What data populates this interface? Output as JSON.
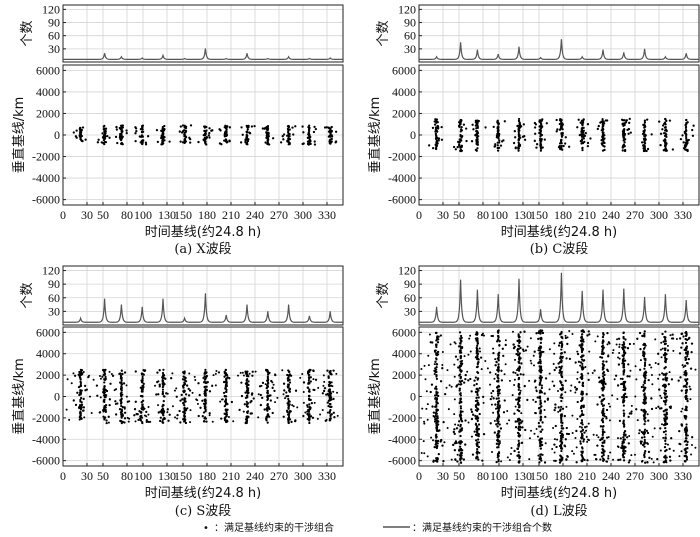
{
  "legend": {
    "dot_symbol": "•",
    "dot_label": "：满足基线约束的干涉组合",
    "line_label": "：满足基线约束的干涉组合个数"
  },
  "chart_data": [
    {
      "type": "scatter",
      "caption": "(a) X波段",
      "xlabel": "时间基线(约24.8 h)",
      "ylabel_top": "个数",
      "ylabel_bottom": "垂直基线/km",
      "xlim": [
        0,
        350
      ],
      "xticks": [
        0,
        30,
        50,
        80,
        100,
        130,
        150,
        180,
        210,
        240,
        270,
        300,
        330
      ],
      "count_ylim": [
        0,
        130
      ],
      "count_yticks": [
        30,
        60,
        90,
        120
      ],
      "count_peaks": [
        {
          "x": 22,
          "y": 6
        },
        {
          "x": 52,
          "y": 20
        },
        {
          "x": 73,
          "y": 12
        },
        {
          "x": 99,
          "y": 9
        },
        {
          "x": 125,
          "y": 15
        },
        {
          "x": 152,
          "y": 8
        },
        {
          "x": 178,
          "y": 31
        },
        {
          "x": 204,
          "y": 8
        },
        {
          "x": 230,
          "y": 20
        },
        {
          "x": 256,
          "y": 8
        },
        {
          "x": 282,
          "y": 12
        },
        {
          "x": 308,
          "y": 8
        },
        {
          "x": 334,
          "y": 9
        }
      ],
      "baseline_ylim": [
        -6500,
        6500
      ],
      "baseline_yticks": [
        6000,
        4000,
        2000,
        0,
        -2000,
        -4000,
        -6000
      ],
      "columns": [
        {
          "x": 22,
          "spread": 700
        },
        {
          "x": 52,
          "spread": 900
        },
        {
          "x": 73,
          "spread": 900
        },
        {
          "x": 99,
          "spread": 900
        },
        {
          "x": 125,
          "spread": 900
        },
        {
          "x": 152,
          "spread": 900
        },
        {
          "x": 178,
          "spread": 900
        },
        {
          "x": 204,
          "spread": 900
        },
        {
          "x": 230,
          "spread": 900
        },
        {
          "x": 256,
          "spread": 900
        },
        {
          "x": 282,
          "spread": 900
        },
        {
          "x": 308,
          "spread": 900
        },
        {
          "x": 334,
          "spread": 800
        }
      ]
    },
    {
      "type": "scatter",
      "caption": "(b) C波段",
      "xlabel": "时间基线(约24.8 h)",
      "ylabel_top": "个数",
      "ylabel_bottom": "垂直基线/km",
      "xlim": [
        0,
        350
      ],
      "xticks": [
        0,
        30,
        50,
        80,
        100,
        130,
        150,
        180,
        210,
        240,
        270,
        300,
        330
      ],
      "count_ylim": [
        0,
        130
      ],
      "count_yticks": [
        30,
        60,
        90,
        120
      ],
      "count_peaks": [
        {
          "x": 22,
          "y": 12
        },
        {
          "x": 52,
          "y": 45
        },
        {
          "x": 73,
          "y": 28
        },
        {
          "x": 99,
          "y": 18
        },
        {
          "x": 125,
          "y": 35
        },
        {
          "x": 152,
          "y": 10
        },
        {
          "x": 178,
          "y": 52
        },
        {
          "x": 204,
          "y": 12
        },
        {
          "x": 230,
          "y": 28
        },
        {
          "x": 256,
          "y": 22
        },
        {
          "x": 282,
          "y": 30
        },
        {
          "x": 308,
          "y": 12
        },
        {
          "x": 334,
          "y": 20
        }
      ],
      "baseline_ylim": [
        -6500,
        6500
      ],
      "baseline_yticks": [
        6000,
        4000,
        2000,
        0,
        -2000,
        -4000,
        -6000
      ],
      "columns": [
        {
          "x": 22,
          "spread": 1500
        },
        {
          "x": 52,
          "spread": 1500
        },
        {
          "x": 73,
          "spread": 1500
        },
        {
          "x": 99,
          "spread": 1500
        },
        {
          "x": 125,
          "spread": 1500
        },
        {
          "x": 152,
          "spread": 1500
        },
        {
          "x": 178,
          "spread": 1500
        },
        {
          "x": 204,
          "spread": 1500
        },
        {
          "x": 230,
          "spread": 1500
        },
        {
          "x": 256,
          "spread": 1500
        },
        {
          "x": 282,
          "spread": 1500
        },
        {
          "x": 308,
          "spread": 1500
        },
        {
          "x": 334,
          "spread": 1500
        }
      ]
    },
    {
      "type": "scatter",
      "caption": "(c) S波段",
      "xlabel": "时间基线(约24.8 h)",
      "ylabel_top": "个数",
      "ylabel_bottom": "垂直基线/km",
      "xlim": [
        0,
        350
      ],
      "xticks": [
        0,
        30,
        50,
        80,
        100,
        130,
        150,
        180,
        210,
        240,
        270,
        300,
        330
      ],
      "count_ylim": [
        0,
        130
      ],
      "count_yticks": [
        30,
        60,
        90,
        120
      ],
      "count_peaks": [
        {
          "x": 22,
          "y": 15
        },
        {
          "x": 52,
          "y": 58
        },
        {
          "x": 73,
          "y": 45
        },
        {
          "x": 99,
          "y": 40
        },
        {
          "x": 125,
          "y": 58
        },
        {
          "x": 152,
          "y": 15
        },
        {
          "x": 178,
          "y": 70
        },
        {
          "x": 204,
          "y": 22
        },
        {
          "x": 230,
          "y": 45
        },
        {
          "x": 256,
          "y": 30
        },
        {
          "x": 282,
          "y": 45
        },
        {
          "x": 308,
          "y": 20
        },
        {
          "x": 334,
          "y": 30
        }
      ],
      "baseline_ylim": [
        -6500,
        6500
      ],
      "baseline_yticks": [
        6000,
        4000,
        2000,
        0,
        -2000,
        -4000,
        -6000
      ],
      "columns": [
        {
          "x": 22,
          "spread": 2500
        },
        {
          "x": 52,
          "spread": 2500
        },
        {
          "x": 73,
          "spread": 2500
        },
        {
          "x": 99,
          "spread": 2500
        },
        {
          "x": 125,
          "spread": 2500
        },
        {
          "x": 152,
          "spread": 2500
        },
        {
          "x": 178,
          "spread": 2500
        },
        {
          "x": 204,
          "spread": 2500
        },
        {
          "x": 230,
          "spread": 2500
        },
        {
          "x": 256,
          "spread": 2500
        },
        {
          "x": 282,
          "spread": 2500
        },
        {
          "x": 308,
          "spread": 2500
        },
        {
          "x": 334,
          "spread": 2500
        }
      ]
    },
    {
      "type": "scatter",
      "caption": "(d) L波段",
      "xlabel": "时间基线(约24.8 h)",
      "ylabel_top": "个数",
      "ylabel_bottom": "垂直基线/km",
      "xlim": [
        0,
        350
      ],
      "xticks": [
        0,
        30,
        50,
        80,
        100,
        130,
        150,
        180,
        210,
        240,
        270,
        300,
        330
      ],
      "count_ylim": [
        0,
        130
      ],
      "count_yticks": [
        30,
        60,
        90,
        120
      ],
      "count_peaks": [
        {
          "x": 22,
          "y": 40
        },
        {
          "x": 52,
          "y": 100
        },
        {
          "x": 73,
          "y": 78
        },
        {
          "x": 99,
          "y": 68
        },
        {
          "x": 125,
          "y": 102
        },
        {
          "x": 152,
          "y": 35
        },
        {
          "x": 178,
          "y": 115
        },
        {
          "x": 204,
          "y": 75
        },
        {
          "x": 230,
          "y": 78
        },
        {
          "x": 256,
          "y": 80
        },
        {
          "x": 282,
          "y": 62
        },
        {
          "x": 308,
          "y": 68
        },
        {
          "x": 334,
          "y": 55
        }
      ],
      "baseline_ylim": [
        -6500,
        6500
      ],
      "baseline_yticks": [
        6000,
        4000,
        2000,
        0,
        -2000,
        -4000,
        -6000
      ],
      "columns": [
        {
          "x": 22,
          "spread": 6200
        },
        {
          "x": 52,
          "spread": 6200
        },
        {
          "x": 73,
          "spread": 6200
        },
        {
          "x": 99,
          "spread": 6200
        },
        {
          "x": 125,
          "spread": 6200
        },
        {
          "x": 152,
          "spread": 6200
        },
        {
          "x": 178,
          "spread": 6200
        },
        {
          "x": 204,
          "spread": 6200
        },
        {
          "x": 230,
          "spread": 6200
        },
        {
          "x": 256,
          "spread": 6200
        },
        {
          "x": 282,
          "spread": 6200
        },
        {
          "x": 308,
          "spread": 6200
        },
        {
          "x": 334,
          "spread": 6200
        }
      ]
    }
  ]
}
